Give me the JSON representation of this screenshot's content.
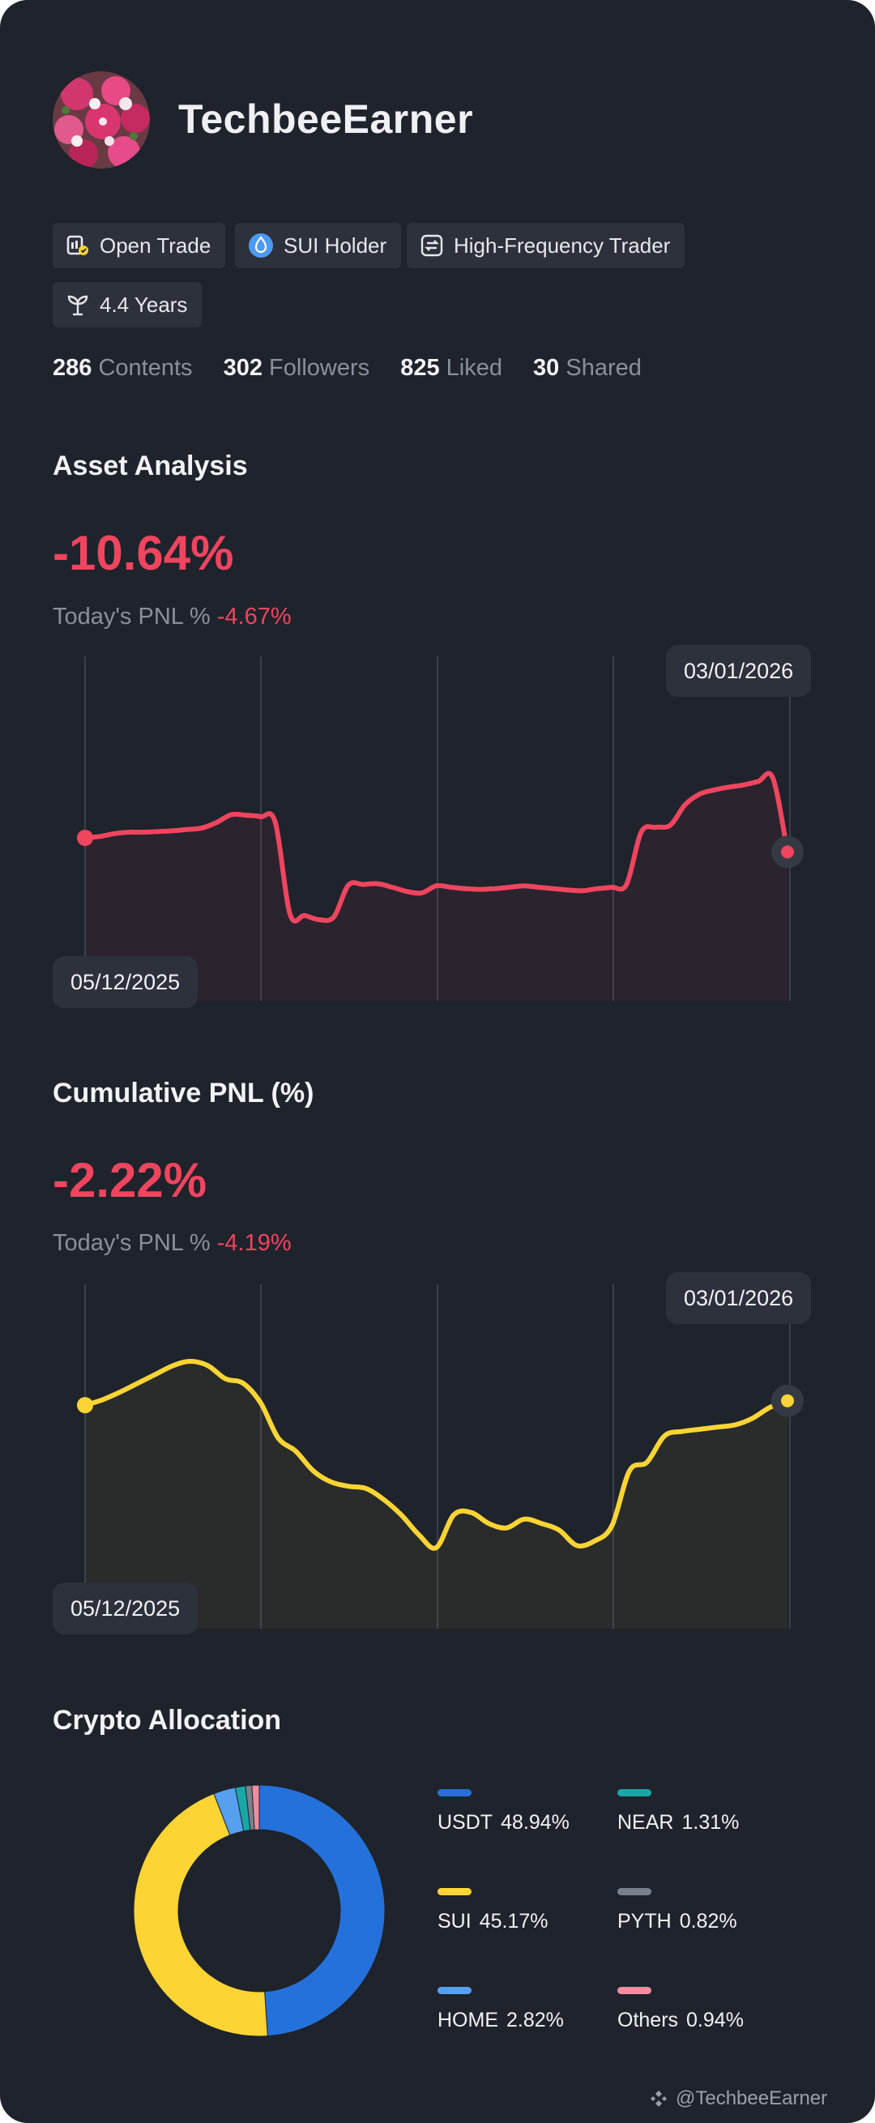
{
  "profile": {
    "username": "TechbeeEarner",
    "tags": [
      {
        "label": "Open Trade",
        "icon": "open-trade-icon"
      },
      {
        "label": "SUI Holder",
        "icon": "sui-drop-icon"
      },
      {
        "label": "High-Frequency Trader",
        "icon": "swap-arrows-icon"
      },
      {
        "label": "4.4 Years",
        "icon": "sprout-icon"
      }
    ],
    "stats": [
      {
        "value": "286",
        "label": "Contents"
      },
      {
        "value": "302",
        "label": "Followers"
      },
      {
        "value": "825",
        "label": "Liked"
      },
      {
        "value": "30",
        "label": "Shared"
      }
    ]
  },
  "asset_analysis": {
    "title": "Asset Analysis",
    "value": "-10.64%",
    "today_label": "Today's PNL %",
    "today_value": "-4.67%",
    "start_date": "05/12/2025",
    "end_date": "03/01/2026"
  },
  "cumulative_pnl": {
    "title": "Cumulative PNL (%)",
    "value": "-2.22%",
    "today_label": "Today's PNL %",
    "today_value": "-4.19%",
    "start_date": "05/12/2025",
    "end_date": "03/01/2026"
  },
  "allocation": {
    "title": "Crypto Allocation",
    "items": [
      {
        "name": "USDT",
        "pct": "48.94%",
        "color": "#2571db"
      },
      {
        "name": "NEAR",
        "pct": "1.31%",
        "color": "#17a8a7"
      },
      {
        "name": "SUI",
        "pct": "45.17%",
        "color": "#fcd535"
      },
      {
        "name": "PYTH",
        "pct": "0.82%",
        "color": "#7b818c"
      },
      {
        "name": "HOME",
        "pct": "2.82%",
        "color": "#56a0ef"
      },
      {
        "name": "Others",
        "pct": "0.94%",
        "color": "#f08d9f"
      }
    ]
  },
  "watermark": "@TechbeeEarner",
  "colors": {
    "negative": "#f0455f",
    "accent_yellow": "#fcd535",
    "background": "#1f232c"
  },
  "chart_data": [
    {
      "type": "line",
      "title": "Asset Analysis",
      "x_start": "05/12/2025",
      "x_end": "03/01/2026",
      "series": [
        {
          "values": [
            0.0,
            0.02,
            0.06,
            0.08,
            0.08,
            0.09,
            0.1,
            0.12,
            0.14,
            0.22,
            0.33,
            0.32,
            0.3,
            0.22,
            -1.08,
            -1.1,
            -1.16,
            -1.12,
            -0.67,
            -0.66,
            -0.65,
            -0.7,
            -0.76,
            -0.78,
            -0.68,
            -0.7,
            -0.72,
            -0.73,
            -0.72,
            -0.7,
            -0.68,
            -0.7,
            -0.72,
            -0.74,
            -0.75,
            -0.72,
            -0.7,
            -0.66,
            0.08,
            0.15,
            0.18,
            0.47,
            0.62,
            0.68,
            0.72,
            0.75,
            0.8,
            0.85,
            -0.2
          ]
        }
      ],
      "grid": true
    },
    {
      "type": "line",
      "title": "Cumulative PNL (%)",
      "x_start": "05/12/2025",
      "x_end": "03/01/2026",
      "series": [
        {
          "values": [
            0.0,
            0.05,
            0.12,
            0.2,
            0.28,
            0.36,
            0.4,
            0.36,
            0.24,
            0.2,
            0.02,
            -0.3,
            -0.42,
            -0.6,
            -0.7,
            -0.74,
            -0.76,
            -0.86,
            -1.0,
            -1.18,
            -1.3,
            -1.0,
            -0.98,
            -1.08,
            -1.12,
            -1.04,
            -1.08,
            -1.14,
            -1.28,
            -1.24,
            -1.1,
            -0.6,
            -0.52,
            -0.28,
            -0.24,
            -0.22,
            -0.2,
            -0.18,
            -0.12,
            -0.02,
            0.04
          ]
        }
      ],
      "grid": true
    },
    {
      "type": "pie",
      "title": "Crypto Allocation",
      "categories": [
        "USDT",
        "SUI",
        "HOME",
        "NEAR",
        "PYTH",
        "Others"
      ],
      "values": [
        48.94,
        45.17,
        2.82,
        1.31,
        0.82,
        0.94
      ]
    }
  ]
}
